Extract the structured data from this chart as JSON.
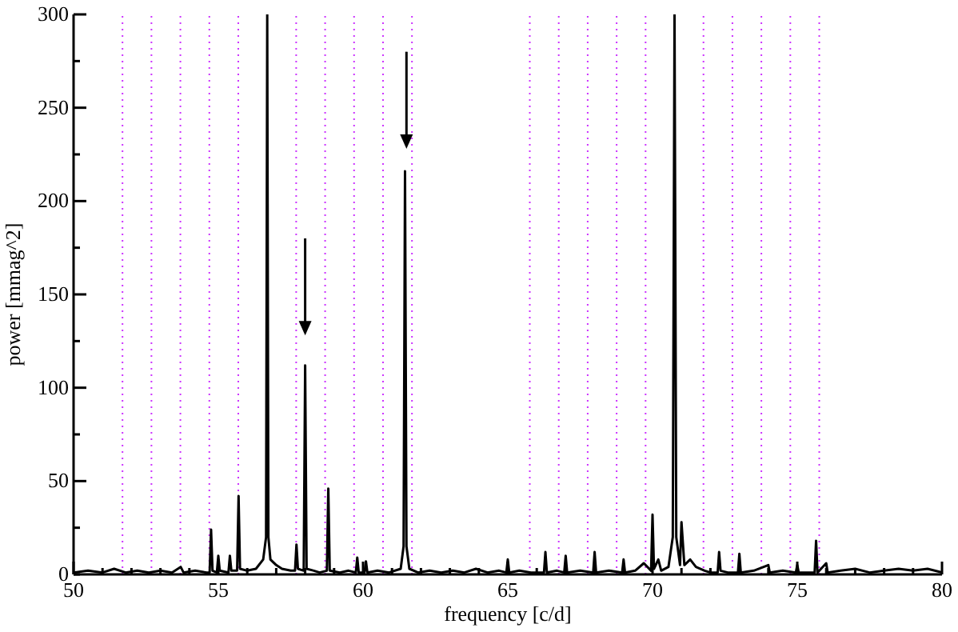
{
  "chart_data": {
    "type": "line",
    "xlabel": "frequency [c/d]",
    "ylabel": "power [mmag^2]",
    "xlim": [
      50,
      80
    ],
    "ylim": [
      0,
      300
    ],
    "xticks": [
      50,
      {
        "value": 51,
        "label": null
      },
      {
        "value": 52,
        "label": null
      },
      {
        "value": 53,
        "label": null
      },
      {
        "value": 54,
        "label": null
      },
      55,
      {
        "value": 56,
        "label": null
      },
      {
        "value": 57,
        "label": null
      },
      {
        "value": 58,
        "label": null
      },
      {
        "value": 59,
        "label": null
      },
      60,
      {
        "value": 61,
        "label": null
      },
      {
        "value": 62,
        "label": null
      },
      {
        "value": 63,
        "label": null
      },
      {
        "value": 64,
        "label": null
      },
      65,
      {
        "value": 66,
        "label": null
      },
      {
        "value": 67,
        "label": null
      },
      {
        "value": 68,
        "label": null
      },
      {
        "value": 69,
        "label": null
      },
      70,
      {
        "value": 71,
        "label": null
      },
      {
        "value": 72,
        "label": null
      },
      {
        "value": 73,
        "label": null
      },
      {
        "value": 74,
        "label": null
      },
      75,
      {
        "value": 76,
        "label": null
      },
      {
        "value": 77,
        "label": null
      },
      {
        "value": 78,
        "label": null
      },
      {
        "value": 79,
        "label": null
      },
      80
    ],
    "yticks": [
      0,
      {
        "value": 25,
        "label": null
      },
      50,
      {
        "value": 75,
        "label": null
      },
      100,
      {
        "value": 125,
        "label": null
      },
      150,
      {
        "value": 175,
        "label": null
      },
      200,
      {
        "value": 225,
        "label": null
      },
      250,
      {
        "value": 275,
        "label": null
      },
      300
    ],
    "grid": false,
    "legend": false,
    "marker": "none",
    "line_style": "solid",
    "ref_lines": [
      {
        "axis": "x",
        "value": 51.69,
        "color": "#cc33ff",
        "line_style": "dotted"
      },
      {
        "axis": "x",
        "value": 52.69,
        "color": "#cc33ff",
        "line_style": "dotted"
      },
      {
        "axis": "x",
        "value": 53.69,
        "color": "#cc33ff",
        "line_style": "dotted"
      },
      {
        "axis": "x",
        "value": 54.69,
        "color": "#cc33ff",
        "line_style": "dotted"
      },
      {
        "axis": "x",
        "value": 55.69,
        "color": "#cc33ff",
        "line_style": "dotted"
      },
      {
        "axis": "x",
        "value": 57.69,
        "color": "#cc33ff",
        "line_style": "dotted"
      },
      {
        "axis": "x",
        "value": 58.69,
        "color": "#cc33ff",
        "line_style": "dotted"
      },
      {
        "axis": "x",
        "value": 59.69,
        "color": "#cc33ff",
        "line_style": "dotted"
      },
      {
        "axis": "x",
        "value": 60.69,
        "color": "#cc33ff",
        "line_style": "dotted"
      },
      {
        "axis": "x",
        "value": 61.69,
        "color": "#cc33ff",
        "line_style": "dotted"
      },
      {
        "axis": "x",
        "value": 65.76,
        "color": "#cc33ff",
        "line_style": "dotted"
      },
      {
        "axis": "x",
        "value": 66.76,
        "color": "#cc33ff",
        "line_style": "dotted"
      },
      {
        "axis": "x",
        "value": 67.76,
        "color": "#cc33ff",
        "line_style": "dotted"
      },
      {
        "axis": "x",
        "value": 68.76,
        "color": "#cc33ff",
        "line_style": "dotted"
      },
      {
        "axis": "x",
        "value": 69.76,
        "color": "#cc33ff",
        "line_style": "dotted"
      },
      {
        "axis": "x",
        "value": 71.76,
        "color": "#cc33ff",
        "line_style": "dotted"
      },
      {
        "axis": "x",
        "value": 72.76,
        "color": "#cc33ff",
        "line_style": "dotted"
      },
      {
        "axis": "x",
        "value": 73.76,
        "color": "#cc33ff",
        "line_style": "dotted"
      },
      {
        "axis": "x",
        "value": 74.76,
        "color": "#cc33ff",
        "line_style": "dotted"
      },
      {
        "axis": "x",
        "value": 75.76,
        "color": "#cc33ff",
        "line_style": "dotted"
      }
    ],
    "series": [
      {
        "color": "#000000",
        "x": [
          50.0,
          50.5,
          51.0,
          51.4,
          51.8,
          52.2,
          52.6,
          53.0,
          53.4,
          53.7,
          53.8,
          54.2,
          54.6,
          54.7,
          54.75,
          54.8,
          54.95,
          55.0,
          55.05,
          55.35,
          55.4,
          55.45,
          55.65,
          55.7,
          55.75,
          56.0,
          56.3,
          56.55,
          56.65,
          56.69,
          56.73,
          56.8,
          57.0,
          57.2,
          57.5,
          57.65,
          57.7,
          57.75,
          57.95,
          58.0,
          58.05,
          58.3,
          58.5,
          58.75,
          58.8,
          58.85,
          59.2,
          59.5,
          59.75,
          59.8,
          59.85,
          60.05,
          60.1,
          60.15,
          60.5,
          60.9,
          61.3,
          61.4,
          61.45,
          61.5,
          61.6,
          61.9,
          62.3,
          62.7,
          63.1,
          63.5,
          63.9,
          64.3,
          64.7,
          64.95,
          65.0,
          65.05,
          65.4,
          65.8,
          66.25,
          66.3,
          66.35,
          66.7,
          66.95,
          67.0,
          67.05,
          67.5,
          67.95,
          68.0,
          68.05,
          68.5,
          68.95,
          69.0,
          69.05,
          69.4,
          69.7,
          69.95,
          70.0,
          70.05,
          70.2,
          70.3,
          70.55,
          70.7,
          70.76,
          70.82,
          70.95,
          71.0,
          71.1,
          71.3,
          71.5,
          71.8,
          72.0,
          72.25,
          72.3,
          72.35,
          72.6,
          72.95,
          73.0,
          73.05,
          73.5,
          74.0,
          74.05,
          74.5,
          74.95,
          75.0,
          75.05,
          75.6,
          75.65,
          75.7,
          76.0,
          76.05,
          76.5,
          77.0,
          77.5,
          78.0,
          78.5,
          79.0,
          79.5,
          80.0
        ],
        "values": [
          1,
          2,
          1,
          3,
          1,
          2,
          1,
          2,
          1,
          4,
          1,
          2,
          1,
          1,
          24,
          2,
          1,
          10,
          2,
          1,
          10,
          2,
          2,
          42,
          3,
          2,
          3,
          8,
          20,
          300,
          20,
          8,
          5,
          3,
          2,
          2,
          16,
          3,
          2,
          112,
          3,
          2,
          1,
          2,
          46,
          2,
          1,
          2,
          1,
          9,
          1,
          1,
          7,
          1,
          2,
          1,
          3,
          15,
          216,
          15,
          3,
          1,
          2,
          1,
          2,
          1,
          3,
          1,
          2,
          1,
          8,
          1,
          2,
          1,
          1,
          12,
          1,
          2,
          1,
          10,
          1,
          2,
          1,
          12,
          1,
          2,
          1,
          8,
          1,
          2,
          6,
          2,
          32,
          3,
          8,
          2,
          4,
          20,
          300,
          20,
          5,
          28,
          5,
          8,
          4,
          2,
          1,
          1,
          12,
          2,
          1,
          1,
          11,
          1,
          2,
          5,
          1,
          2,
          1,
          5,
          1,
          1,
          18,
          1,
          6,
          1,
          2,
          3,
          1,
          2,
          3,
          2,
          3,
          1
        ]
      }
    ]
  }
}
